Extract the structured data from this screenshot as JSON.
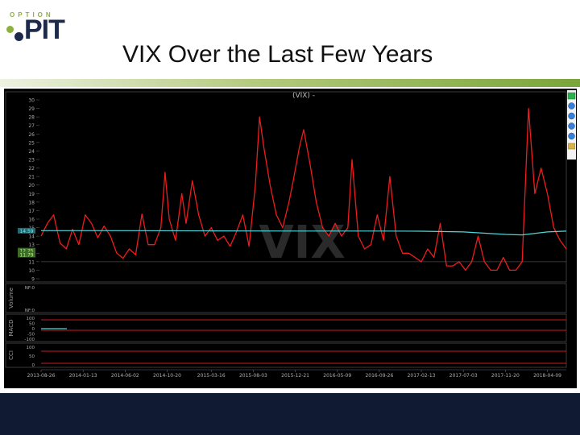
{
  "logo": {
    "top": "OPTION",
    "main": "PIT"
  },
  "slide_title": "VIX Over the Last Few Years",
  "chart_data": {
    "type": "line",
    "title": "(VIX) -",
    "watermark": "VIX",
    "ylim": [
      9,
      30
    ],
    "yticks": [
      9,
      10,
      11,
      12,
      13,
      14,
      15,
      16,
      17,
      18,
      19,
      20,
      21,
      22,
      23,
      24,
      25,
      26,
      27,
      28,
      29,
      30
    ],
    "x_tick_labels": [
      "2013-08-26",
      "2014-01-13",
      "2014-06-02",
      "2014-10-20",
      "2015-03-16",
      "2015-08-03",
      "2015-12-21",
      "2016-05-09",
      "2016-09-26",
      "2017-02-13",
      "2017-07-03",
      "2017-11-20",
      "2018-04-09"
    ],
    "value_tags": [
      "14.59",
      "12.25",
      "11.79"
    ],
    "series": [
      {
        "color": "#ee1c1c",
        "x": [
          "2013-08-26",
          "2013-09-16",
          "2013-10-07",
          "2013-10-28",
          "2013-11-18",
          "2013-12-09",
          "2013-12-30",
          "2014-01-20",
          "2014-02-10",
          "2014-03-03",
          "2014-03-24",
          "2014-04-14",
          "2014-05-05",
          "2014-05-26",
          "2014-06-16",
          "2014-07-07",
          "2014-07-28",
          "2014-08-18",
          "2014-09-08",
          "2014-09-29",
          "2014-10-13",
          "2014-10-27",
          "2014-11-17",
          "2014-12-08",
          "2014-12-22",
          "2015-01-12",
          "2015-02-02",
          "2015-02-23",
          "2015-03-16",
          "2015-04-06",
          "2015-04-27",
          "2015-05-18",
          "2015-06-08",
          "2015-06-29",
          "2015-07-20",
          "2015-08-10",
          "2015-08-24",
          "2015-09-07",
          "2015-09-28",
          "2015-10-19",
          "2015-11-09",
          "2015-11-30",
          "2015-12-14",
          "2016-01-04",
          "2016-01-18",
          "2016-02-08",
          "2016-02-29",
          "2016-03-21",
          "2016-04-11",
          "2016-05-02",
          "2016-05-23",
          "2016-06-13",
          "2016-06-27",
          "2016-07-18",
          "2016-08-08",
          "2016-08-29",
          "2016-09-19",
          "2016-10-10",
          "2016-10-31",
          "2016-11-21",
          "2016-12-12",
          "2017-01-02",
          "2017-01-23",
          "2017-02-13",
          "2017-03-06",
          "2017-03-27",
          "2017-04-17",
          "2017-05-08",
          "2017-05-29",
          "2017-06-19",
          "2017-07-10",
          "2017-07-31",
          "2017-08-21",
          "2017-09-11",
          "2017-10-02",
          "2017-10-23",
          "2017-11-13",
          "2017-12-04",
          "2017-12-25",
          "2018-01-15",
          "2018-02-05",
          "2018-02-26",
          "2018-03-19",
          "2018-04-09",
          "2018-04-30",
          "2018-05-21",
          "2018-06-11"
        ],
        "y": [
          14.0,
          15.5,
          16.5,
          13.2,
          12.5,
          14.8,
          13.0,
          16.5,
          15.5,
          13.8,
          15.2,
          14.0,
          12.0,
          11.4,
          12.5,
          11.8,
          16.6,
          13.0,
          13.0,
          15.0,
          21.5,
          16.0,
          13.5,
          19.0,
          15.5,
          20.5,
          16.5,
          14.0,
          15.0,
          13.5,
          14.0,
          12.8,
          14.5,
          16.5,
          12.8,
          20.0,
          28.0,
          24.5,
          20.0,
          16.5,
          15.0,
          18.0,
          20.5,
          24.5,
          26.5,
          22.5,
          18.0,
          15.0,
          14.0,
          15.5,
          14.0,
          15.0,
          23.0,
          14.0,
          12.5,
          13.0,
          16.5,
          13.5,
          21.0,
          14.0,
          12.0,
          12.0,
          11.5,
          11.0,
          12.5,
          11.5,
          15.5,
          10.5,
          10.5,
          11.0,
          10.0,
          11.0,
          14.0,
          11.0,
          10.0,
          10.0,
          11.5,
          10.0,
          10.0,
          11.0,
          29.0,
          19.0,
          22.0,
          19.0,
          15.0,
          13.5,
          12.5
        ]
      },
      {
        "color": "#4fd6da",
        "x": [
          "2013-08-26",
          "2014-06-02",
          "2015-03-16",
          "2015-12-21",
          "2016-09-26",
          "2017-02-13",
          "2017-07-03",
          "2017-11-20",
          "2018-01-15",
          "2018-04-09",
          "2018-06-11"
        ],
        "y": [
          14.65,
          14.65,
          14.62,
          14.6,
          14.6,
          14.58,
          14.5,
          14.2,
          14.15,
          14.5,
          14.59
        ]
      }
    ],
    "lower_panels": [
      {
        "label": "Volume",
        "ticks": [
          "NF:0",
          "NF:0"
        ]
      },
      {
        "label": "MACD",
        "ticks": [
          "100",
          "50",
          "0",
          "-50",
          "-100"
        ]
      },
      {
        "label": "CCI",
        "ticks": [
          "100",
          "50",
          "0"
        ]
      }
    ]
  },
  "toolbar_icons": [
    "green-box-icon",
    "zoom-in-icon",
    "zoom-out-icon",
    "reset-icon",
    "calendar-icon",
    "print-icon"
  ]
}
